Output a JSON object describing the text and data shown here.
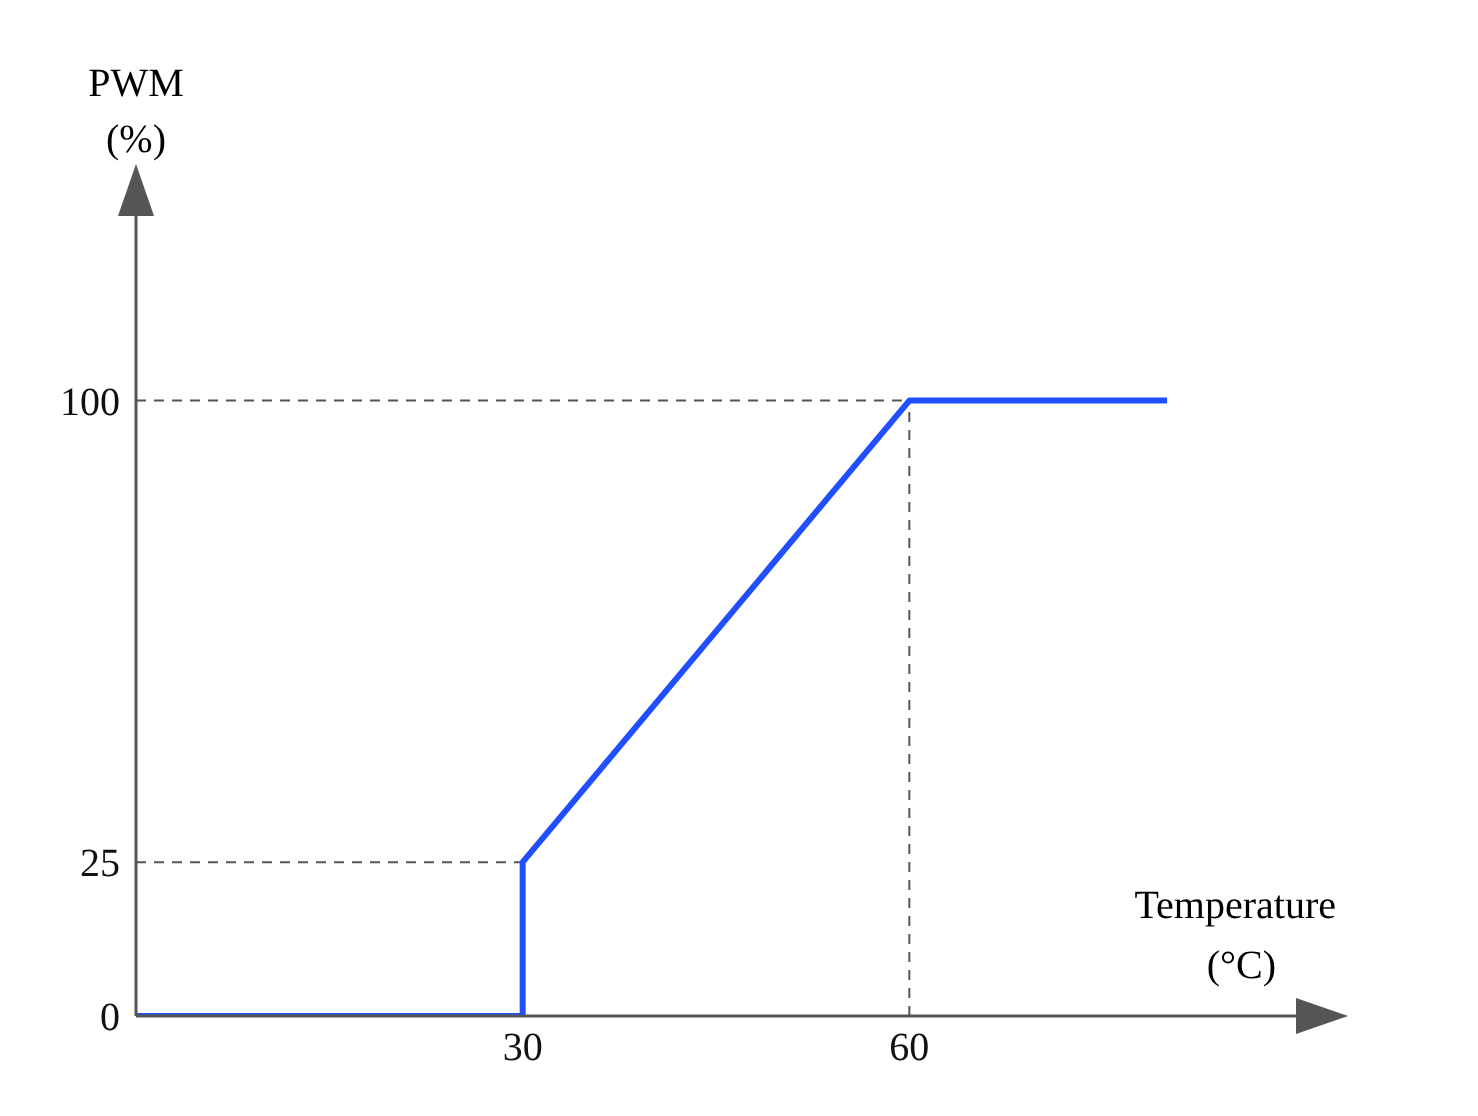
{
  "chart_data": {
    "type": "line",
    "xlabel": "Temperature (°C)",
    "ylabel": "PWM (%)",
    "x": [
      0,
      30,
      30,
      60,
      80
    ],
    "series": [
      {
        "color": "#1f4fff",
        "values": [
          0,
          0,
          25,
          100,
          100
        ]
      }
    ],
    "xlim": [
      0,
      90
    ],
    "xticks": [
      30,
      60
    ],
    "ylim": [
      0,
      130
    ],
    "yticks": [
      0,
      25,
      100
    ],
    "ref_lines": [
      {
        "axis": "y",
        "value": 100,
        "color": "#555555",
        "line_style": "dashed"
      },
      {
        "axis": "y",
        "value": 25,
        "color": "#555555",
        "line_style": "dashed"
      },
      {
        "axis": "x",
        "value": 60,
        "color": "#555555",
        "line_style": "dashed"
      }
    ],
    "marker": "none",
    "line_style": "solid"
  }
}
